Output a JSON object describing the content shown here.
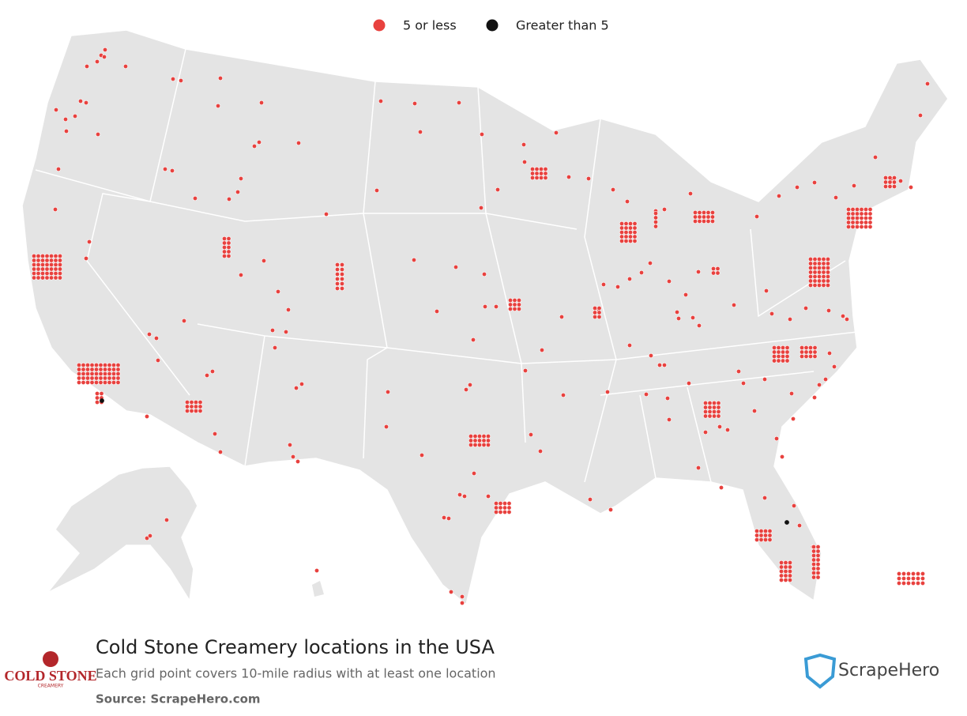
{
  "legend": {
    "items": [
      {
        "label": "5 or less",
        "color": "#e8413e"
      },
      {
        "label": "Greater than 5",
        "color": "#111111"
      }
    ]
  },
  "title": "Cold Stone Creamery locations in the USA",
  "subtitle": "Each grid point covers 10-mile radius with at least one location",
  "source": "Source: ScrapeHero.com",
  "logos": {
    "brand": "COLD STONE",
    "brand_sub": "CREAMERY",
    "publisher": "ScrapeHero"
  }
}
